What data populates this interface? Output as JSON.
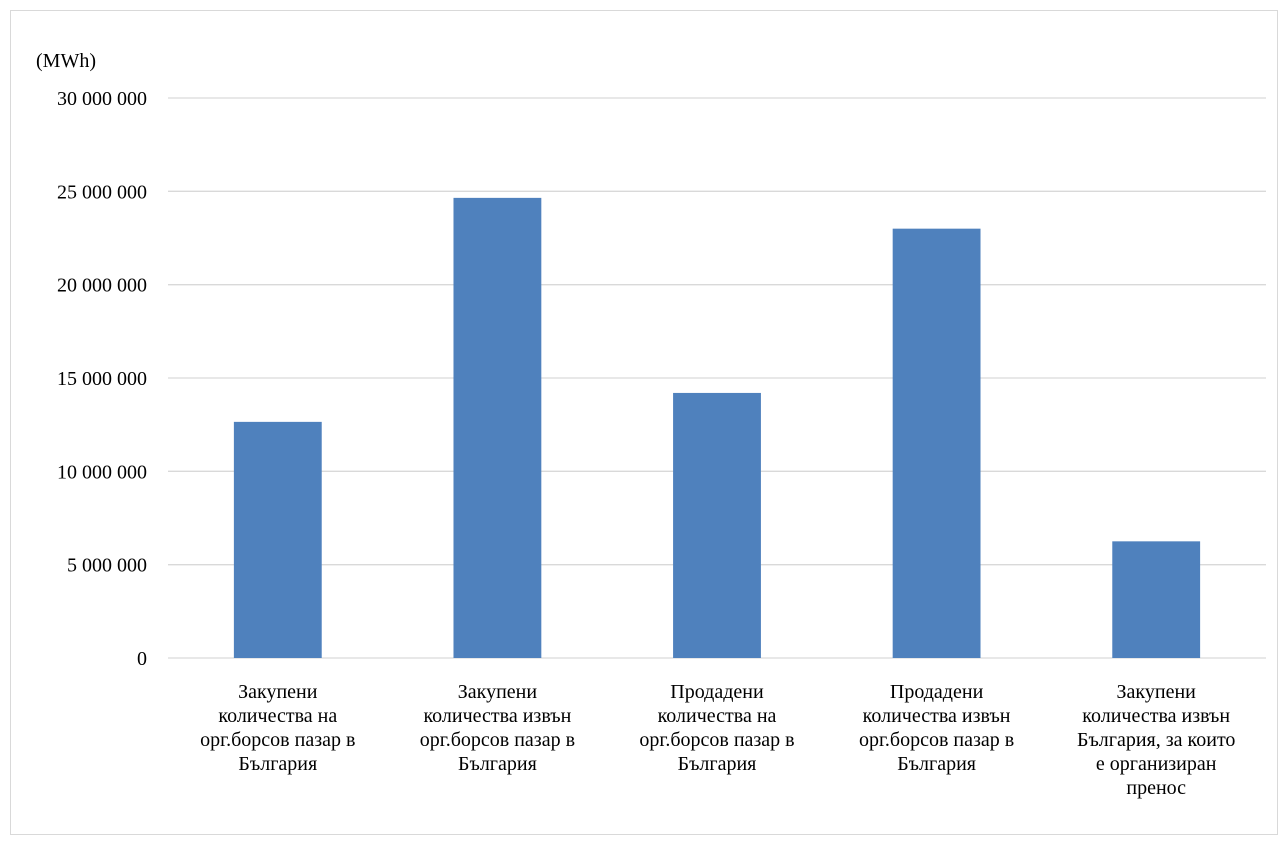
{
  "chart_data": {
    "type": "bar",
    "title": "",
    "unit_label": "(MWh)",
    "xlabel": "",
    "ylabel": "",
    "ylim": [
      0,
      30000000
    ],
    "yticks": [
      0,
      5000000,
      10000000,
      15000000,
      20000000,
      25000000,
      30000000
    ],
    "ytick_labels": [
      "0",
      "5 000 000",
      "10 000 000",
      "15 000 000",
      "20 000 000",
      "25 000 000",
      "30 000 000"
    ],
    "grid": true,
    "legend": "none",
    "bar_color": "#4f81bd",
    "gridline_color": "#d9d9d9",
    "categories": [
      "Закупени количества на орг.борсов пазар в България",
      "Закупени количества извън орг.борсов пазар в България",
      "Продадени количества на орг.борсов пазар в България",
      "Продадени количества извън орг.борсов пазар в България",
      "Закупени количества извън България, за които е организиран пренос"
    ],
    "category_lines": [
      [
        "Закупени",
        "количества на",
        "орг.борсов пазар в",
        "България"
      ],
      [
        "Закупени",
        "количества извън",
        "орг.борсов пазар в",
        "България"
      ],
      [
        "Продадени",
        "количества на",
        "орг.борсов пазар в",
        "България"
      ],
      [
        "Продадени",
        "количества извън",
        "орг.борсов пазар в",
        "България"
      ],
      [
        "Закупени",
        "количества извън",
        "България, за които",
        "е организиран",
        "пренос"
      ]
    ],
    "values": [
      12650000,
      24650000,
      14200000,
      23000000,
      6250000
    ]
  }
}
